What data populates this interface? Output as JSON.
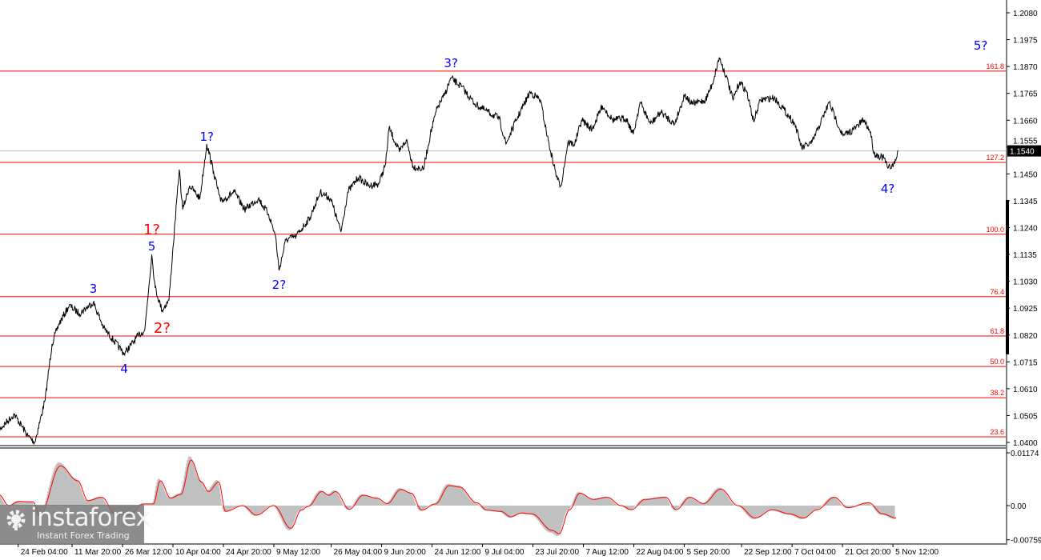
{
  "colors": {
    "price": "#000000",
    "fib": "#ff0000",
    "wave_blue": "#0000ff",
    "wave_red": "#ff0000",
    "histogram": "#c0c0c0",
    "signal": "#ff0000",
    "current_line": "#c0c0c0"
  },
  "logo": {
    "name": "instaforex",
    "tagline": "Instant Forex Trading",
    "icon": "gear-icon"
  },
  "chart_data": [
    {
      "type": "line",
      "price_axis": {
        "ticks": [
          "1.2080",
          "1.1975",
          "1.1870",
          "1.1765",
          "1.1660",
          "1.1555",
          "1.1450",
          "1.1345",
          "1.1240",
          "1.1135",
          "1.1030",
          "1.0925",
          "1.0820",
          "1.0715",
          "1.0610",
          "1.0505",
          "1.0400"
        ],
        "ylim": [
          1.04,
          1.208
        ]
      },
      "time_axis": {
        "ticks": [
          {
            "date": "2025-02-24T04:00",
            "label": "24 Feb 04:00"
          },
          {
            "date": "2025-03-11T20:00",
            "label": "11 Mar 20:00"
          },
          {
            "date": "2025-03-26T12:00",
            "label": "26 Mar 12:00"
          },
          {
            "date": "2025-04-10T04:00",
            "label": "10 Apr 04:00"
          },
          {
            "date": "2025-04-24T20:00",
            "label": "24 Apr 20:00"
          },
          {
            "date": "2025-05-09T12:00",
            "label": "9 May 12:00"
          },
          {
            "date": "2025-05-26T04:00",
            "label": "26 May 04:00"
          },
          {
            "date": "2025-06-09T20:00",
            "label": "9 Jun 20:00"
          },
          {
            "date": "2025-06-24T12:00",
            "label": "24 Jun 12:00"
          },
          {
            "date": "2025-07-09T04:00",
            "label": "9 Jul 04:00"
          },
          {
            "date": "2025-07-23T20:00",
            "label": "23 Jul 20:00"
          },
          {
            "date": "2025-08-07T12:00",
            "label": "7 Aug 12:00"
          },
          {
            "date": "2025-08-22T04:00",
            "label": "22 Aug 04:00"
          },
          {
            "date": "2025-09-05T20:00",
            "label": "5 Sep 20:00"
          },
          {
            "date": "2025-09-22T12:00",
            "label": "22 Sep 12:00"
          },
          {
            "date": "2025-10-07T04:00",
            "label": "7 Oct 04:00"
          },
          {
            "date": "2025-10-21T20:00",
            "label": "21 Oct 20:00"
          },
          {
            "date": "2025-11-05T12:00",
            "label": "5 Nov 12:00"
          }
        ]
      },
      "current_price": "1.1540",
      "fib_levels": [
        {
          "label": "161.8",
          "price": 1.1852
        },
        {
          "label": "127.2",
          "price": 1.1495
        },
        {
          "label": "100.0",
          "price": 1.1214
        },
        {
          "label": "76.4",
          "price": 1.097
        },
        {
          "label": "61.8",
          "price": 1.0816
        },
        {
          "label": "50.0",
          "price": 1.0697
        },
        {
          "label": "38.2",
          "price": 1.0575
        },
        {
          "label": "23.6",
          "price": 1.0422
        }
      ],
      "wave_labels": [
        {
          "text": "3",
          "date": "2025-03-18",
          "price": 1.1004,
          "color": "blue"
        },
        {
          "text": "4",
          "date": "2025-03-27",
          "price": 1.0691,
          "color": "blue"
        },
        {
          "text": "5",
          "date": "2025-04-04",
          "price": 1.117,
          "color": "blue"
        },
        {
          "text": "1?",
          "date": "2025-04-04",
          "price": 1.1232,
          "color": "red"
        },
        {
          "text": "2?",
          "date": "2025-04-07",
          "price": 1.0848,
          "color": "red"
        },
        {
          "text": "1?",
          "date": "2025-04-20",
          "price": 1.1598,
          "color": "blue"
        },
        {
          "text": "2?",
          "date": "2025-05-11",
          "price": 1.102,
          "color": "blue"
        },
        {
          "text": "3?",
          "date": "2025-06-30",
          "price": 1.1886,
          "color": "blue"
        },
        {
          "text": "4?",
          "date": "2025-11-04",
          "price": 1.1395,
          "color": "blue"
        },
        {
          "text": "5?",
          "date": "2025-12-01",
          "price": 1.1955,
          "color": "blue"
        }
      ],
      "series": [
        {
          "values": [
            [
              "2025-02-18",
              1.0441
            ],
            [
              "2025-02-23",
              1.051
            ],
            [
              "2025-02-27",
              1.0425
            ],
            [
              "2025-03-01",
              1.04
            ],
            [
              "2025-03-04",
              1.0566
            ],
            [
              "2025-03-06",
              1.0785
            ],
            [
              "2025-03-08",
              1.0863
            ],
            [
              "2025-03-11",
              1.0935
            ],
            [
              "2025-03-14",
              1.0904
            ],
            [
              "2025-03-18",
              1.0948
            ],
            [
              "2025-03-21",
              1.0848
            ],
            [
              "2025-03-27",
              1.0747
            ],
            [
              "2025-03-31",
              1.0816
            ],
            [
              "2025-04-02",
              1.0841
            ],
            [
              "2025-04-04",
              1.1135
            ],
            [
              "2025-04-05",
              1.1004
            ],
            [
              "2025-04-07",
              1.0916
            ],
            [
              "2025-04-09",
              1.0957
            ],
            [
              "2025-04-10",
              1.1129
            ],
            [
              "2025-04-12",
              1.1467
            ],
            [
              "2025-04-13",
              1.1311
            ],
            [
              "2025-04-15",
              1.1404
            ],
            [
              "2025-04-18",
              1.1354
            ],
            [
              "2025-04-20",
              1.1567
            ],
            [
              "2025-04-22",
              1.1458
            ],
            [
              "2025-04-24",
              1.1342
            ],
            [
              "2025-04-28",
              1.1379
            ],
            [
              "2025-05-01",
              1.1311
            ],
            [
              "2025-05-05",
              1.1354
            ],
            [
              "2025-05-08",
              1.1292
            ],
            [
              "2025-05-10",
              1.1207
            ],
            [
              "2025-05-11",
              1.1073
            ],
            [
              "2025-05-13",
              1.1192
            ],
            [
              "2025-05-16",
              1.1207
            ],
            [
              "2025-05-20",
              1.1279
            ],
            [
              "2025-05-23",
              1.1379
            ],
            [
              "2025-05-26",
              1.1354
            ],
            [
              "2025-05-29",
              1.1223
            ],
            [
              "2025-05-31",
              1.1379
            ],
            [
              "2025-06-03",
              1.1436
            ],
            [
              "2025-06-06",
              1.1404
            ],
            [
              "2025-06-09",
              1.1411
            ],
            [
              "2025-06-11",
              1.1489
            ],
            [
              "2025-06-12",
              1.163
            ],
            [
              "2025-06-15",
              1.1536
            ],
            [
              "2025-06-17",
              1.1583
            ],
            [
              "2025-06-19",
              1.1479
            ],
            [
              "2025-06-22",
              1.1467
            ],
            [
              "2025-06-24",
              1.1605
            ],
            [
              "2025-06-26",
              1.1708
            ],
            [
              "2025-06-28",
              1.1755
            ],
            [
              "2025-06-30",
              1.1824
            ],
            [
              "2025-07-03",
              1.1792
            ],
            [
              "2025-07-07",
              1.1723
            ],
            [
              "2025-07-10",
              1.1698
            ],
            [
              "2025-07-14",
              1.1667
            ],
            [
              "2025-07-16",
              1.1567
            ],
            [
              "2025-07-19",
              1.1661
            ],
            [
              "2025-07-23",
              1.177
            ],
            [
              "2025-07-26",
              1.1739
            ],
            [
              "2025-07-28",
              1.1598
            ],
            [
              "2025-07-29",
              1.1536
            ],
            [
              "2025-07-31",
              1.1426
            ],
            [
              "2025-08-01",
              1.1404
            ],
            [
              "2025-08-03",
              1.1573
            ],
            [
              "2025-08-05",
              1.1567
            ],
            [
              "2025-08-07",
              1.1661
            ],
            [
              "2025-08-10",
              1.1623
            ],
            [
              "2025-08-13",
              1.1717
            ],
            [
              "2025-08-16",
              1.1661
            ],
            [
              "2025-08-20",
              1.1667
            ],
            [
              "2025-08-22",
              1.1605
            ],
            [
              "2025-08-24",
              1.173
            ],
            [
              "2025-08-27",
              1.1645
            ],
            [
              "2025-08-30",
              1.1692
            ],
            [
              "2025-09-03",
              1.1645
            ],
            [
              "2025-09-06",
              1.1761
            ],
            [
              "2025-09-08",
              1.1723
            ],
            [
              "2025-09-12",
              1.1739
            ],
            [
              "2025-09-14",
              1.1802
            ],
            [
              "2025-09-16",
              1.1905
            ],
            [
              "2025-09-18",
              1.1833
            ],
            [
              "2025-09-20",
              1.1739
            ],
            [
              "2025-09-22",
              1.1811
            ],
            [
              "2025-09-24",
              1.177
            ],
            [
              "2025-09-26",
              1.1655
            ],
            [
              "2025-09-28",
              1.1739
            ],
            [
              "2025-10-02",
              1.1748
            ],
            [
              "2025-10-05",
              1.1698
            ],
            [
              "2025-10-08",
              1.1645
            ],
            [
              "2025-10-10",
              1.1551
            ],
            [
              "2025-10-13",
              1.1573
            ],
            [
              "2025-10-15",
              1.1636
            ],
            [
              "2025-10-18",
              1.173
            ],
            [
              "2025-10-20",
              1.1661
            ],
            [
              "2025-10-22",
              1.1598
            ],
            [
              "2025-10-25",
              1.1623
            ],
            [
              "2025-10-28",
              1.1661
            ],
            [
              "2025-10-30",
              1.1614
            ],
            [
              "2025-10-31",
              1.1529
            ],
            [
              "2025-11-03",
              1.1511
            ],
            [
              "2025-11-04",
              1.1473
            ],
            [
              "2025-11-06",
              1.1489
            ],
            [
              "2025-11-07",
              1.1542
            ]
          ]
        }
      ]
    },
    {
      "type": "bar",
      "axis": {
        "ticks": [
          "0.01174",
          "0.00",
          "-0.00759"
        ],
        "ylim": [
          -0.00759,
          0.01174
        ]
      },
      "series": [
        {
          "values": [
            [
              "2025-02-18",
              0.0027
            ],
            [
              "2025-02-21",
              0.0
            ],
            [
              "2025-02-24",
              0.001
            ],
            [
              "2025-02-28",
              0.0009
            ],
            [
              "2025-03-02",
              -0.0023
            ],
            [
              "2025-03-08",
              0.0096
            ],
            [
              "2025-03-13",
              0.006
            ],
            [
              "2025-03-16",
              0.0012
            ],
            [
              "2025-03-20",
              0.002
            ],
            [
              "2025-03-24",
              -0.002
            ],
            [
              "2025-03-28",
              -0.0023
            ],
            [
              "2025-04-01",
              0.0004
            ],
            [
              "2025-04-04",
              0.0004
            ],
            [
              "2025-04-06",
              0.006
            ],
            [
              "2025-04-09",
              0.0018
            ],
            [
              "2025-04-12",
              0.0027
            ],
            [
              "2025-04-15",
              0.011
            ],
            [
              "2025-04-18",
              0.0057
            ],
            [
              "2025-04-20",
              0.0034
            ],
            [
              "2025-04-23",
              0.0057
            ],
            [
              "2025-04-25",
              -0.0014
            ],
            [
              "2025-04-30",
              0.0
            ],
            [
              "2025-05-04",
              -0.0023
            ],
            [
              "2025-05-09",
              0.0
            ],
            [
              "2025-05-14",
              -0.0055
            ],
            [
              "2025-05-17",
              -0.0011
            ],
            [
              "2025-05-19",
              -0.0002
            ],
            [
              "2025-05-23",
              0.0034
            ],
            [
              "2025-05-25",
              0.0025
            ],
            [
              "2025-05-27",
              0.0034
            ],
            [
              "2025-05-31",
              -0.0009
            ],
            [
              "2025-06-04",
              0.0025
            ],
            [
              "2025-06-08",
              0.0018
            ],
            [
              "2025-06-11",
              0.0005
            ],
            [
              "2025-06-15",
              0.0039
            ],
            [
              "2025-06-18",
              0.003
            ],
            [
              "2025-06-21",
              -0.0011
            ],
            [
              "2025-06-25",
              0.0004
            ],
            [
              "2025-06-29",
              0.0048
            ],
            [
              "2025-07-02",
              0.0045
            ],
            [
              "2025-07-07",
              0.0007
            ],
            [
              "2025-07-10",
              -0.0011
            ],
            [
              "2025-07-14",
              -0.0014
            ],
            [
              "2025-07-17",
              -0.0027
            ],
            [
              "2025-07-20",
              -0.0018
            ],
            [
              "2025-07-23",
              -0.002
            ],
            [
              "2025-07-29",
              -0.006
            ],
            [
              "2025-07-31",
              -0.0068
            ],
            [
              "2025-08-03",
              -0.001
            ],
            [
              "2025-08-06",
              0.003
            ],
            [
              "2025-08-10",
              0.0015
            ],
            [
              "2025-08-14",
              0.002
            ],
            [
              "2025-08-18",
              0.0
            ],
            [
              "2025-08-21",
              -0.001
            ],
            [
              "2025-08-25",
              0.0015
            ],
            [
              "2025-08-31",
              0.002
            ],
            [
              "2025-09-03",
              -0.001
            ],
            [
              "2025-09-07",
              0.002
            ],
            [
              "2025-09-11",
              0.0005
            ],
            [
              "2025-09-16",
              0.004
            ],
            [
              "2025-09-21",
              0.0
            ],
            [
              "2025-09-26",
              -0.003
            ],
            [
              "2025-10-01",
              -0.001
            ],
            [
              "2025-10-06",
              -0.002
            ],
            [
              "2025-10-10",
              -0.003
            ],
            [
              "2025-10-14",
              -0.001
            ],
            [
              "2025-10-19",
              0.002
            ],
            [
              "2025-10-23",
              -0.0005
            ],
            [
              "2025-10-29",
              0.0007
            ],
            [
              "2025-11-02",
              -0.002
            ],
            [
              "2025-11-06",
              -0.003
            ]
          ]
        }
      ]
    }
  ]
}
